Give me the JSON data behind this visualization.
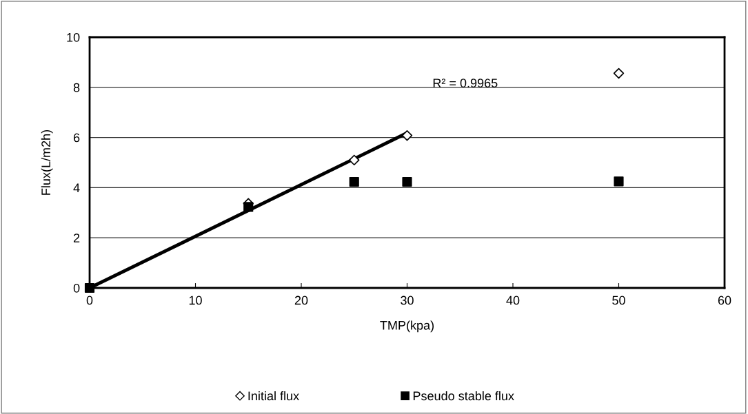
{
  "chart_data": {
    "type": "scatter",
    "xlabel": "TMP(kpa)",
    "ylabel": "Flux(L/m2h)",
    "xlim": [
      0,
      60
    ],
    "xticks": [
      0,
      10,
      20,
      30,
      40,
      50,
      60
    ],
    "ylim": [
      0,
      10
    ],
    "yticks": [
      0,
      2,
      4,
      6,
      8,
      10
    ],
    "grid": "y",
    "legend": "bottom",
    "annotations": [
      "R² = 0.9965"
    ],
    "series": [
      {
        "name": "Initial flux",
        "marker": "diamond",
        "color": "#000000",
        "x": [
          15,
          25,
          30,
          50
        ],
        "values": [
          3.37,
          5.1,
          6.08,
          8.56
        ]
      },
      {
        "name": "Pseudo stable flux",
        "marker": "square",
        "color": "#000000",
        "x": [
          0,
          15,
          25,
          30,
          50
        ],
        "values": [
          0,
          3.23,
          4.23,
          4.23,
          4.25
        ]
      },
      {
        "type": "line",
        "marker": "none",
        "color": "#000000",
        "x": [
          0,
          30
        ],
        "values": [
          0,
          6.18
        ]
      }
    ]
  }
}
